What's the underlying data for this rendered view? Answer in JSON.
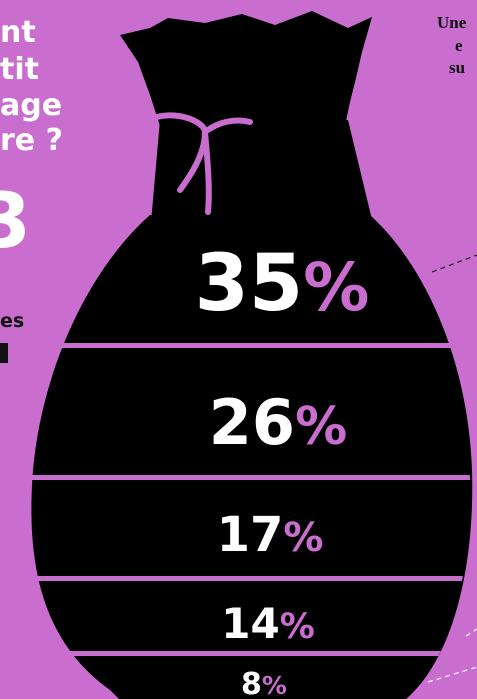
{
  "colors": {
    "background": "#c96dce",
    "bag": "#000000",
    "accent": "#c96dce",
    "text_light": "#ffffff",
    "text_dark": "#111111"
  },
  "left_fragments": [
    "nt",
    "tit",
    "age",
    "re ?",
    "3",
    "es"
  ],
  "right_fragments": [
    "Une",
    "e",
    "su"
  ],
  "percentages": [
    {
      "value": "35",
      "symbol": "%"
    },
    {
      "value": "26",
      "symbol": "%"
    },
    {
      "value": "17",
      "symbol": "%"
    },
    {
      "value": "14",
      "symbol": "%"
    },
    {
      "value": "8",
      "symbol": "%"
    }
  ]
}
